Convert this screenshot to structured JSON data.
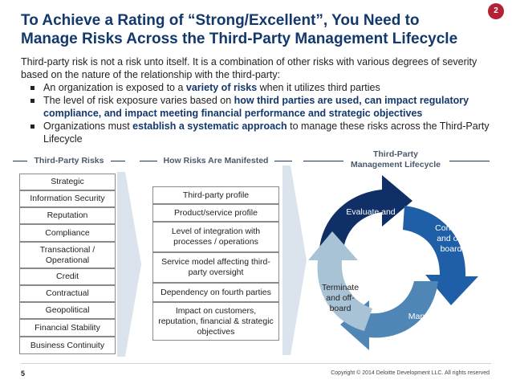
{
  "title": "To Achieve a Rating of “Strong/Excellent”, You Need to Manage Risks Across the Third-Party Management Lifecycle",
  "page_badge": "2",
  "intro": "Third-party risk is not a risk unto itself. It is a combination of other risks with various degrees of severity based on the nature of the relationship with the third-party:",
  "bullets": [
    {
      "pre": "An organization is exposed to a ",
      "bold": "variety of risks",
      "post": " when it utilizes third parties"
    },
    {
      "pre": "The level of risk exposure varies based on ",
      "bold": "how third parties are used, can impact regulatory compliance, and impact meeting financial performance and strategic objectives",
      "post": ""
    },
    {
      "pre": "Organizations must ",
      "bold": "establish a systematic approach",
      "post": " to manage these risks across the Third-Party Lifecycle"
    }
  ],
  "headers": {
    "risks": "Third-Party Risks",
    "manifested": "How Risks Are Manifested",
    "lifecycle_line1": "Third-Party",
    "lifecycle_line2": "Management Lifecycle"
  },
  "risks": [
    "Strategic",
    "Information Security",
    "Reputation",
    "Compliance",
    "Transactional / Operational",
    "Credit",
    "Contractual",
    "Geopolitical",
    "Financial Stability",
    "Business Continuity"
  ],
  "manifested": [
    "Third-party profile",
    "Product/service profile",
    "Level of integration with processes / operations",
    "Service model affecting third-party oversight",
    "Dependency on fourth parties",
    "Impact on customers, reputation, financial & strategic objectives"
  ],
  "lifecycle": {
    "evaluate": "Evaluate and select",
    "contract": "Contract and on-board",
    "manage": "Manage and monitor",
    "terminate": "Terminate and off-board"
  },
  "colors": {
    "title": "#13386b",
    "badge": "#b22234",
    "evaluate": "#0f2f66",
    "contract": "#1f5fa8",
    "manage": "#4f86b5",
    "terminate": "#a9c3d6"
  },
  "footer": {
    "page_number": "5",
    "copyright": "Copyright © 2014 Deloitte Development LLC. All rights reserved"
  }
}
